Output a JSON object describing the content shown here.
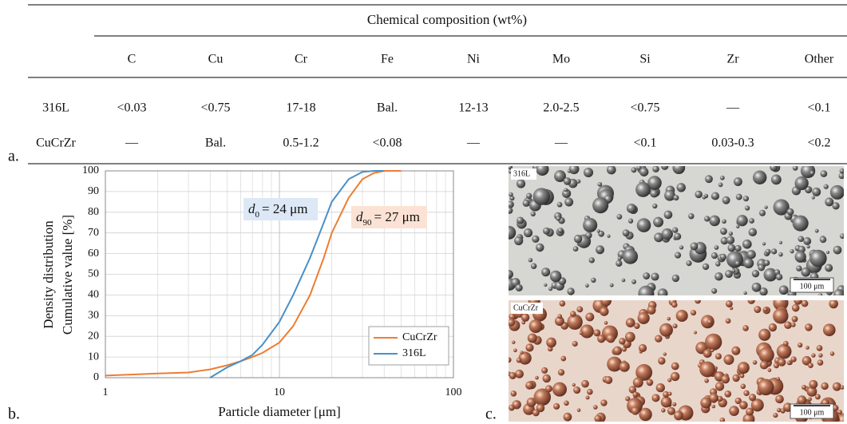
{
  "table": {
    "panel": "a.",
    "caption": "Chemical composition (wt%)",
    "columns": [
      "C",
      "Cu",
      "Cr",
      "Fe",
      "Ni",
      "Mo",
      "Si",
      "Zr",
      "Other"
    ],
    "rows": [
      [
        "316L",
        "<0.03",
        "<0.75",
        "17-18",
        "Bal.",
        "12-13",
        "2.0-2.5",
        "<0.75",
        "—",
        "<0.1"
      ],
      [
        "CuCrZr",
        "—",
        "Bal.",
        "0.5-1.2",
        "<0.08",
        "—",
        "—",
        "<0.1",
        "0.03-0.3",
        "<0.2"
      ]
    ]
  },
  "chart_data": {
    "type": "line",
    "panel": "b.",
    "x_label": "Particle diameter [μm]",
    "y_label": [
      "Density distribution",
      "Cumulative value [%]"
    ],
    "xscale": "log",
    "xlim": [
      1,
      100
    ],
    "xticks": [
      1,
      10,
      100
    ],
    "ylim": [
      0,
      100
    ],
    "yticks": [
      0,
      10,
      20,
      30,
      40,
      50,
      60,
      70,
      80,
      90,
      100
    ],
    "grid": true,
    "legend": "lower right",
    "series": [
      {
        "name": "CuCrZr",
        "color": "#ed7d31",
        "x": [
          1,
          2,
          3,
          4,
          5,
          6,
          7,
          8,
          10,
          12,
          15,
          18,
          20,
          25,
          30,
          35,
          40,
          50
        ],
        "values": [
          1,
          2,
          2.5,
          4,
          6,
          8,
          10,
          12,
          17,
          25,
          40,
          58,
          70,
          87,
          96,
          99,
          100,
          100
        ]
      },
      {
        "name": "316L",
        "color": "#4a90c8",
        "x": [
          4,
          5,
          6,
          7,
          8,
          10,
          12,
          15,
          18,
          20,
          25,
          30,
          35,
          40
        ],
        "values": [
          0,
          5,
          8,
          11,
          16,
          27,
          40,
          58,
          75,
          85,
          96,
          99.5,
          100,
          100
        ]
      }
    ],
    "annotations": [
      {
        "var": "d",
        "sub": "0",
        "text": "= 24 μm"
      },
      {
        "var": "d",
        "sub": "90",
        "text": "= 27 μm"
      }
    ]
  },
  "micrographs": {
    "panel": "c.",
    "images": [
      {
        "label": "316L",
        "scale": "100 μm"
      },
      {
        "label": "CuCrZr",
        "scale": "100 μm"
      }
    ]
  }
}
